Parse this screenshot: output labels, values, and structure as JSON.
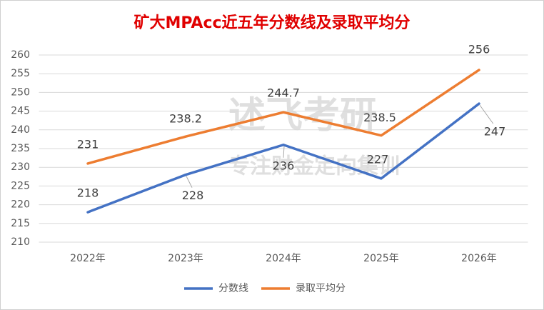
{
  "chart_data": {
    "type": "line",
    "title": "矿大MPAcc近五年分数线及录取平均分",
    "annotations": [
      "述飞考研",
      "专注财金定向集训"
    ],
    "categories": [
      "2022年",
      "2023年",
      "2024年",
      "2025年",
      "2026年"
    ],
    "series": [
      {
        "name": "分数线",
        "color": "#4472c4",
        "values": [
          218,
          228,
          236,
          227,
          247
        ]
      },
      {
        "name": "录取平均分",
        "color": "#ed7d31",
        "values": [
          231,
          238.2,
          244.7,
          238.5,
          256
        ]
      }
    ],
    "ylim": [
      210,
      260
    ],
    "yticks": [
      210,
      215,
      220,
      225,
      230,
      235,
      240,
      245,
      250,
      255,
      260
    ],
    "grid": true,
    "legend": "bottom"
  }
}
